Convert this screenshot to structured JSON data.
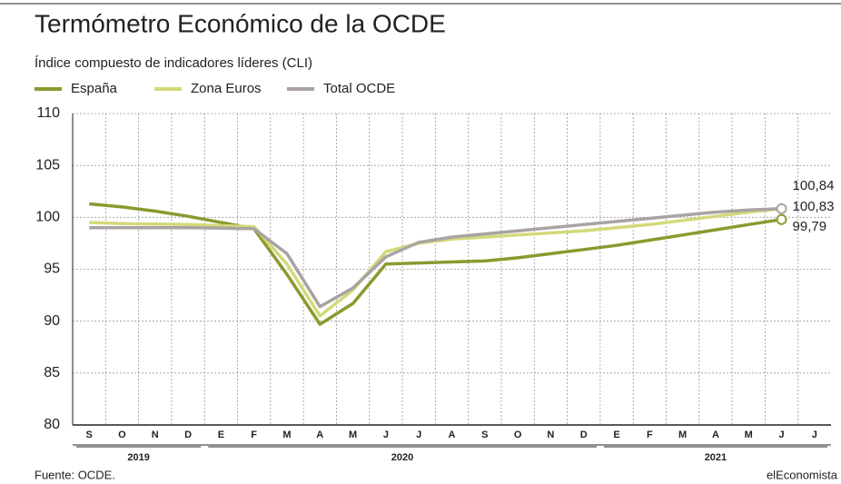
{
  "chart_data": {
    "type": "line",
    "title": "Termómetro Económico de la OCDE",
    "subtitle": "Índice compuesto de indicadores líderes (CLI)",
    "categories": [
      "S",
      "O",
      "N",
      "D",
      "E",
      "F",
      "M",
      "A",
      "M",
      "J",
      "J",
      "A",
      "S",
      "O",
      "N",
      "D",
      "E",
      "F",
      "M",
      "A",
      "M",
      "J",
      "J"
    ],
    "year_groups": [
      {
        "label": "2019",
        "start": 0,
        "end": 3
      },
      {
        "label": "2020",
        "start": 4,
        "end": 15
      },
      {
        "label": "2021",
        "start": 16,
        "end": 22
      }
    ],
    "series": [
      {
        "name": "España",
        "color": "#8a9a2f",
        "values": [
          101.3,
          101.0,
          100.6,
          100.1,
          99.5,
          98.9,
          94.5,
          89.7,
          91.7,
          95.5,
          95.6,
          95.7,
          95.8,
          96.1,
          96.5,
          96.9,
          97.3,
          97.8,
          98.3,
          98.8,
          99.3,
          99.79,
          null
        ],
        "value_labels": [
          null,
          null,
          null,
          null,
          null,
          null,
          null,
          null,
          null,
          null,
          null,
          null,
          null,
          null,
          null,
          null,
          null,
          null,
          null,
          null,
          null,
          "99,79",
          null
        ]
      },
      {
        "name": "Zona Euros",
        "color": "#d3d97a",
        "values": [
          99.5,
          99.4,
          99.35,
          99.3,
          99.2,
          99.1,
          95.5,
          90.5,
          93.0,
          96.7,
          97.5,
          97.9,
          98.1,
          98.3,
          98.5,
          98.7,
          99.0,
          99.3,
          99.7,
          100.1,
          100.5,
          100.84,
          null
        ],
        "value_labels": [
          null,
          null,
          null,
          null,
          null,
          null,
          null,
          null,
          null,
          null,
          null,
          null,
          null,
          null,
          null,
          null,
          null,
          null,
          null,
          null,
          null,
          "100,84",
          null
        ]
      },
      {
        "name": "Total OCDE",
        "color": "#aaa3a3",
        "values": [
          99.0,
          99.0,
          99.0,
          99.0,
          98.95,
          98.9,
          96.5,
          91.4,
          93.2,
          96.2,
          97.6,
          98.1,
          98.4,
          98.7,
          99.0,
          99.3,
          99.6,
          99.9,
          100.2,
          100.5,
          100.7,
          100.83,
          null
        ],
        "value_labels": [
          null,
          null,
          null,
          null,
          null,
          null,
          null,
          null,
          null,
          null,
          null,
          null,
          null,
          null,
          null,
          null,
          null,
          null,
          null,
          null,
          null,
          "100,83",
          null
        ]
      }
    ],
    "ylim": [
      80,
      110
    ],
    "yticks": [
      80,
      85,
      90,
      95,
      100,
      105,
      110
    ],
    "grid": true,
    "source": "Fuente: OCDE.",
    "brand": "elEconomista"
  }
}
